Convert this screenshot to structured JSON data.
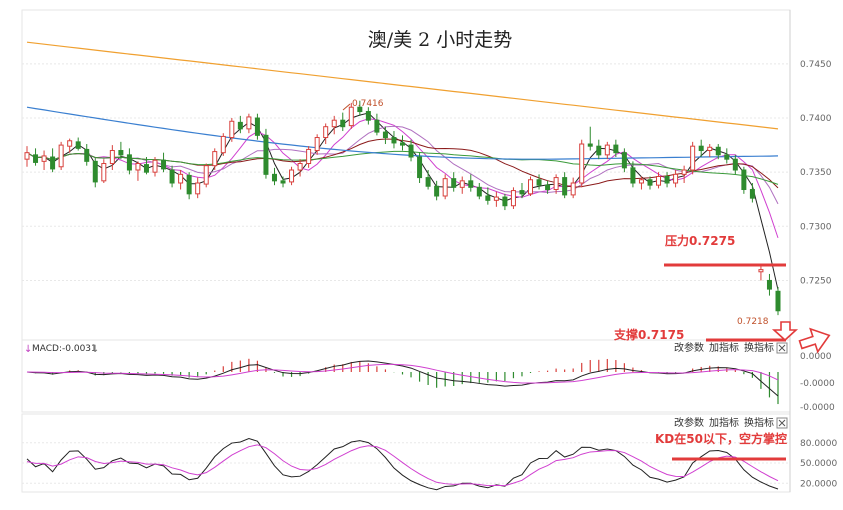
{
  "chart_data": {
    "type": "candlestick",
    "title": "澳/美 2 小时走势",
    "price_panel": {
      "y_ticks": [
        "0.7450",
        "0.7400",
        "0.7350",
        "0.7300",
        "0.7250"
      ],
      "ylim": [
        0.7195,
        0.7485
      ],
      "high_label": "0.7416",
      "low_label": "0.7218",
      "annotations": {
        "resistance": "压力0.7275",
        "support": "支撑0.7175"
      },
      "resistance_level": 0.7275,
      "support_level": 0.7175,
      "candles": [
        [
          0.7362,
          0.7374,
          0.7355,
          0.7368
        ],
        [
          0.7366,
          0.7372,
          0.7356,
          0.7359
        ],
        [
          0.736,
          0.737,
          0.7352,
          0.7365
        ],
        [
          0.7364,
          0.7372,
          0.735,
          0.7353
        ],
        [
          0.7355,
          0.7378,
          0.7352,
          0.7375
        ],
        [
          0.7374,
          0.7381,
          0.7368,
          0.7379
        ],
        [
          0.7378,
          0.7382,
          0.737,
          0.7372
        ],
        [
          0.7371,
          0.7376,
          0.7356,
          0.736
        ],
        [
          0.736,
          0.7363,
          0.7336,
          0.7341
        ],
        [
          0.7342,
          0.7362,
          0.734,
          0.7358
        ],
        [
          0.7358,
          0.7375,
          0.7352,
          0.737
        ],
        [
          0.737,
          0.7378,
          0.7362,
          0.7366
        ],
        [
          0.7366,
          0.7372,
          0.7348,
          0.7352
        ],
        [
          0.7352,
          0.736,
          0.7342,
          0.7358
        ],
        [
          0.7357,
          0.7364,
          0.7348,
          0.735
        ],
        [
          0.735,
          0.7364,
          0.7346,
          0.7361
        ],
        [
          0.7361,
          0.7368,
          0.735,
          0.7353
        ],
        [
          0.7352,
          0.7356,
          0.7336,
          0.734
        ],
        [
          0.734,
          0.7352,
          0.7334,
          0.7348
        ],
        [
          0.7347,
          0.735,
          0.7325,
          0.733
        ],
        [
          0.733,
          0.7345,
          0.7326,
          0.734
        ],
        [
          0.7339,
          0.7358,
          0.7336,
          0.7356
        ],
        [
          0.7356,
          0.7372,
          0.7352,
          0.7369
        ],
        [
          0.7368,
          0.7386,
          0.7365,
          0.7383
        ],
        [
          0.7382,
          0.74,
          0.7378,
          0.7397
        ],
        [
          0.7396,
          0.7402,
          0.7386,
          0.739
        ],
        [
          0.739,
          0.7404,
          0.7386,
          0.7401
        ],
        [
          0.74,
          0.7404,
          0.738,
          0.7384
        ],
        [
          0.7384,
          0.739,
          0.7344,
          0.7348
        ],
        [
          0.7348,
          0.7354,
          0.7338,
          0.7342
        ],
        [
          0.7342,
          0.7346,
          0.7336,
          0.734
        ],
        [
          0.7341,
          0.7355,
          0.7338,
          0.7352
        ],
        [
          0.7352,
          0.7362,
          0.7346,
          0.7358
        ],
        [
          0.7358,
          0.7374,
          0.7354,
          0.7371
        ],
        [
          0.737,
          0.7385,
          0.7366,
          0.7382
        ],
        [
          0.7382,
          0.7395,
          0.7376,
          0.7392
        ],
        [
          0.7392,
          0.7402,
          0.7385,
          0.7398
        ],
        [
          0.7398,
          0.7405,
          0.7388,
          0.7392
        ],
        [
          0.7393,
          0.7414,
          0.739,
          0.741
        ],
        [
          0.741,
          0.7416,
          0.7402,
          0.7406
        ],
        [
          0.7406,
          0.741,
          0.7394,
          0.7398
        ],
        [
          0.7398,
          0.7404,
          0.7384,
          0.7387
        ],
        [
          0.7387,
          0.7392,
          0.7376,
          0.7382
        ],
        [
          0.7382,
          0.7388,
          0.7372,
          0.7377
        ],
        [
          0.7377,
          0.7384,
          0.737,
          0.7375
        ],
        [
          0.7375,
          0.738,
          0.736,
          0.7364
        ],
        [
          0.7364,
          0.7368,
          0.734,
          0.7345
        ],
        [
          0.7345,
          0.7352,
          0.7334,
          0.7337
        ],
        [
          0.7337,
          0.7342,
          0.7324,
          0.7328
        ],
        [
          0.7328,
          0.7348,
          0.7325,
          0.7344
        ],
        [
          0.7344,
          0.735,
          0.7332,
          0.7336
        ],
        [
          0.7336,
          0.7346,
          0.733,
          0.7342
        ],
        [
          0.7342,
          0.7348,
          0.7332,
          0.7336
        ],
        [
          0.7336,
          0.734,
          0.7325,
          0.7328
        ],
        [
          0.7328,
          0.7336,
          0.732,
          0.7324
        ],
        [
          0.7324,
          0.7332,
          0.7318,
          0.7327
        ],
        [
          0.7327,
          0.733,
          0.7315,
          0.7319
        ],
        [
          0.7319,
          0.7336,
          0.7316,
          0.7333
        ],
        [
          0.7333,
          0.734,
          0.7326,
          0.733
        ],
        [
          0.733,
          0.7346,
          0.7328,
          0.7343
        ],
        [
          0.7343,
          0.7348,
          0.7334,
          0.7338
        ],
        [
          0.7338,
          0.7342,
          0.733,
          0.7334
        ],
        [
          0.7334,
          0.7348,
          0.733,
          0.7345
        ],
        [
          0.7345,
          0.735,
          0.7326,
          0.7329
        ],
        [
          0.7329,
          0.7345,
          0.7326,
          0.734
        ],
        [
          0.734,
          0.738,
          0.7336,
          0.7376
        ],
        [
          0.7376,
          0.7392,
          0.737,
          0.7374
        ],
        [
          0.7374,
          0.738,
          0.7362,
          0.7366
        ],
        [
          0.7366,
          0.7378,
          0.7362,
          0.7375
        ],
        [
          0.7375,
          0.738,
          0.7364,
          0.7368
        ],
        [
          0.7368,
          0.7372,
          0.735,
          0.7354
        ],
        [
          0.7354,
          0.736,
          0.7336,
          0.734
        ],
        [
          0.734,
          0.7346,
          0.7334,
          0.7343
        ],
        [
          0.7343,
          0.7346,
          0.7334,
          0.7338
        ],
        [
          0.7338,
          0.735,
          0.7335,
          0.7346
        ],
        [
          0.7346,
          0.735,
          0.7336,
          0.734
        ],
        [
          0.734,
          0.7352,
          0.7336,
          0.7348
        ],
        [
          0.7348,
          0.7356,
          0.734,
          0.7352
        ],
        [
          0.7352,
          0.7378,
          0.7348,
          0.7374
        ],
        [
          0.7374,
          0.738,
          0.7364,
          0.737
        ],
        [
          0.737,
          0.7376,
          0.7364,
          0.7373
        ],
        [
          0.7373,
          0.7376,
          0.7362,
          0.7366
        ],
        [
          0.7366,
          0.7372,
          0.7358,
          0.7362
        ],
        [
          0.7362,
          0.7366,
          0.7348,
          0.7352
        ],
        [
          0.7352,
          0.7355,
          0.733,
          0.7334
        ],
        [
          0.7334,
          0.734,
          0.7322,
          0.7326
        ],
        [
          0.7258,
          0.7264,
          0.725,
          0.726
        ],
        [
          0.725,
          0.7256,
          0.7236,
          0.7242
        ],
        [
          0.724,
          0.7244,
          0.7218,
          0.7222
        ]
      ]
    },
    "macd_panel": {
      "label": "MACD:-0.0031",
      "y_ticks": [
        "0.0000",
        "-0.0000",
        "-0.0000"
      ],
      "toolbar": [
        "改参数",
        "加指标",
        "换指标"
      ]
    },
    "kd_panel": {
      "y_ticks": [
        "80.0000",
        "50.0000",
        "20.0000"
      ],
      "toolbar": [
        "改参数",
        "加指标",
        "换指标"
      ],
      "annotation": "KD在50以下，空方掌控",
      "level": 50
    },
    "colors": {
      "up": "#d8403c",
      "down": "#2e8b2e",
      "annotation": "#e23b3b",
      "ma_orange": "#f0a030",
      "ma_blue": "#3a7fd0",
      "ma_green": "#3a9a3a",
      "ma_darkred": "#8b1a1a",
      "ma_magenta": "#d040d0",
      "ma_black": "#222222"
    }
  }
}
